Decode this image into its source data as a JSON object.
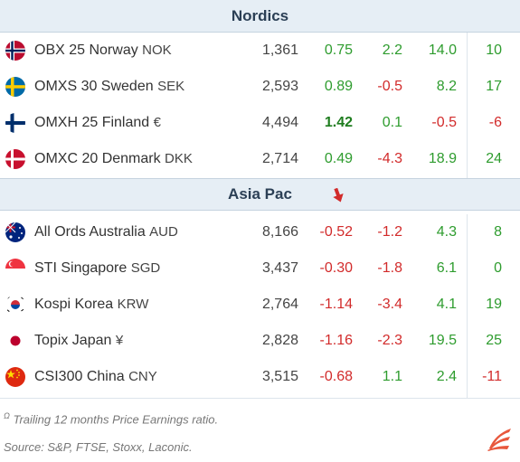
{
  "sections": [
    {
      "title": "Nordics",
      "rows": [
        {
          "flag": "norway-flag",
          "name": "OBX 25 Norway",
          "ccy": "NOK",
          "v1": "1,361",
          "v2": "0.75",
          "v3": "2.2",
          "v4": "14.0",
          "v5": "10"
        },
        {
          "flag": "sweden-flag",
          "name": "OMXS 30 Sweden",
          "ccy": "SEK",
          "v1": "2,593",
          "v2": "0.89",
          "v3": "-0.5",
          "v4": "8.2",
          "v5": "17"
        },
        {
          "flag": "finland-flag",
          "name": "OMXH 25 Finland",
          "ccy": "€",
          "v1": "4,494",
          "v2": "1.42",
          "v3": "0.1",
          "v4": "-0.5",
          "v5": "-6"
        },
        {
          "flag": "denmark-flag",
          "name": "OMXC 20 Denmark",
          "ccy": "DKK",
          "v1": "2,714",
          "v2": "0.49",
          "v3": "-4.3",
          "v4": "18.9",
          "v5": "24"
        }
      ]
    },
    {
      "title": "Asia Pac",
      "rows": [
        {
          "flag": "australia-flag",
          "name": "All Ords Australia",
          "ccy": "AUD",
          "v1": "8,166",
          "v2": "-0.52",
          "v3": "-1.2",
          "v4": "4.3",
          "v5": "8"
        },
        {
          "flag": "singapore-flag",
          "name": "STI Singapore",
          "ccy": "SGD",
          "v1": "3,437",
          "v2": "-0.30",
          "v3": "-1.8",
          "v4": "6.1",
          "v5": "0"
        },
        {
          "flag": "korea-flag",
          "name": "Kospi Korea",
          "ccy": "KRW",
          "v1": "2,764",
          "v2": "-1.14",
          "v3": "-3.4",
          "v4": "4.1",
          "v5": "19"
        },
        {
          "flag": "japan-flag",
          "name": "Topix Japan",
          "ccy": "¥",
          "v1": "2,828",
          "v2": "-1.16",
          "v3": "-2.3",
          "v4": "19.5",
          "v5": "25"
        },
        {
          "flag": "china-flag",
          "name": "CSI300 China",
          "ccy": "CNY",
          "v1": "3,515",
          "v2": "-0.68",
          "v3": "1.1",
          "v4": "2.4",
          "v5": "-11"
        }
      ]
    }
  ],
  "footnote_marker": "Ω",
  "footnote": "Trailing 12 months Price Earnings ratio.",
  "source": "Source: S&P, FTSE, Stoxx, Laconic.",
  "colors": {
    "positive": "#2e9c2e",
    "negative": "#d22b2b",
    "header_bg": "#e6eef5",
    "logo": "#e8573c"
  },
  "icons": {
    "sort_indicator": "arrow-down-icon",
    "brand": "laconic-logo-icon"
  }
}
